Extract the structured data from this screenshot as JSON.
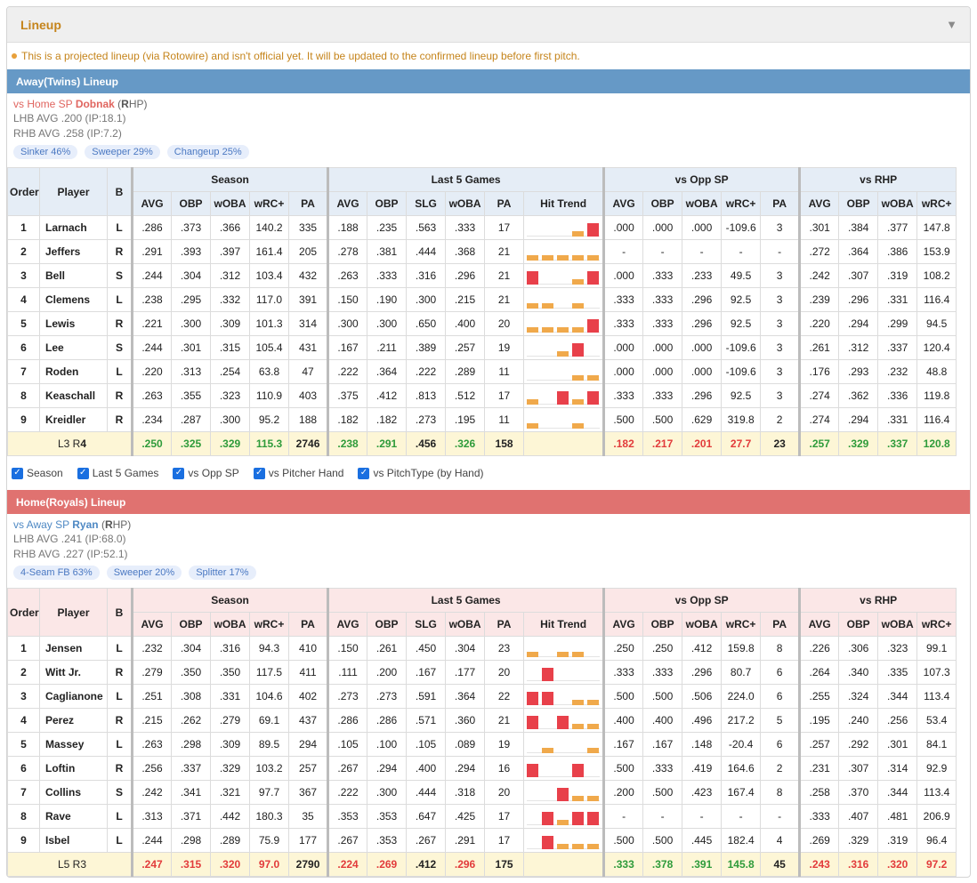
{
  "panel": {
    "title": "Lineup",
    "toggle_icon": "▼"
  },
  "notice": "This is a projected lineup (via Rotowire) and isn't official yet. It will be updated to the confirmed lineup before first pitch.",
  "colors": {
    "good": "#2e9b3a",
    "bad": "#e23b3b",
    "trend_high": "#e8404a",
    "trend_low": "#f0a94b"
  },
  "columns": {
    "groups": [
      "Season",
      "Last 5 Games",
      "vs Opp SP",
      "vs RHP"
    ],
    "order": "Order",
    "player": "Player",
    "bat": "B",
    "season": [
      "AVG",
      "OBP",
      "wOBA",
      "wRC+",
      "PA"
    ],
    "last5": [
      "AVG",
      "OBP",
      "SLG",
      "wOBA",
      "PA",
      "Hit Trend"
    ],
    "vsopp": [
      "AVG",
      "OBP",
      "wOBA",
      "wRC+",
      "PA"
    ],
    "vshand": [
      "AVG",
      "OBP",
      "wOBA",
      "wRC+"
    ]
  },
  "away": {
    "title": "Away(Twins) Lineup",
    "vs_prefix": "vs Home SP ",
    "sp_name": "Dobnak",
    "hand_open": " (",
    "hand_letter": "R",
    "hand_rest": "HP)",
    "lhb": "LHB AVG .200 (IP:18.1)",
    "rhb": "RHB AVG .258 (IP:7.2)",
    "pitches": [
      "Sinker 46%",
      "Sweeper 29%",
      "Changeup 25%"
    ],
    "rows": [
      {
        "o": "1",
        "n": "Larnach",
        "b": "L",
        "s": [
          ".286",
          ".373",
          ".366",
          "140.2",
          "335"
        ],
        "l": [
          ".188",
          ".235",
          ".563",
          ".333",
          "17"
        ],
        "t": [
          0,
          0,
          0,
          1,
          3
        ],
        "v": [
          ".000",
          ".000",
          ".000",
          "-109.6",
          "3"
        ],
        "h": [
          ".301",
          ".384",
          ".377",
          "147.8"
        ]
      },
      {
        "o": "2",
        "n": "Jeffers",
        "b": "R",
        "s": [
          ".291",
          ".393",
          ".397",
          "161.4",
          "205"
        ],
        "l": [
          ".278",
          ".381",
          ".444",
          ".368",
          "21"
        ],
        "t": [
          1,
          1,
          1,
          1,
          1
        ],
        "v": [
          "-",
          "-",
          "-",
          "-",
          "-"
        ],
        "h": [
          ".272",
          ".364",
          ".386",
          "153.9"
        ]
      },
      {
        "o": "3",
        "n": "Bell",
        "b": "S",
        "s": [
          ".244",
          ".304",
          ".312",
          "103.4",
          "432"
        ],
        "l": [
          ".263",
          ".333",
          ".316",
          ".296",
          "21"
        ],
        "t": [
          3,
          0,
          0,
          1,
          3
        ],
        "v": [
          ".000",
          ".333",
          ".233",
          "49.5",
          "3"
        ],
        "h": [
          ".242",
          ".307",
          ".319",
          "108.2"
        ]
      },
      {
        "o": "4",
        "n": "Clemens",
        "b": "L",
        "s": [
          ".238",
          ".295",
          ".332",
          "117.0",
          "391"
        ],
        "l": [
          ".150",
          ".190",
          ".300",
          ".215",
          "21"
        ],
        "t": [
          1,
          1,
          0,
          1,
          0
        ],
        "v": [
          ".333",
          ".333",
          ".296",
          "92.5",
          "3"
        ],
        "h": [
          ".239",
          ".296",
          ".331",
          "116.4"
        ]
      },
      {
        "o": "5",
        "n": "Lewis",
        "b": "R",
        "s": [
          ".221",
          ".300",
          ".309",
          "101.3",
          "314"
        ],
        "l": [
          ".300",
          ".300",
          ".650",
          ".400",
          "20"
        ],
        "t": [
          1,
          1,
          1,
          1,
          3
        ],
        "v": [
          ".333",
          ".333",
          ".296",
          "92.5",
          "3"
        ],
        "h": [
          ".220",
          ".294",
          ".299",
          "94.5"
        ]
      },
      {
        "o": "6",
        "n": "Lee",
        "b": "S",
        "s": [
          ".244",
          ".301",
          ".315",
          "105.4",
          "431"
        ],
        "l": [
          ".167",
          ".211",
          ".389",
          ".257",
          "19"
        ],
        "t": [
          0,
          0,
          1,
          3,
          0
        ],
        "v": [
          ".000",
          ".000",
          ".000",
          "-109.6",
          "3"
        ],
        "h": [
          ".261",
          ".312",
          ".337",
          "120.4"
        ]
      },
      {
        "o": "7",
        "n": "Roden",
        "b": "L",
        "s": [
          ".220",
          ".313",
          ".254",
          "63.8",
          "47"
        ],
        "l": [
          ".222",
          ".364",
          ".222",
          ".289",
          "11"
        ],
        "t": [
          0,
          0,
          0,
          1,
          1
        ],
        "v": [
          ".000",
          ".000",
          ".000",
          "-109.6",
          "3"
        ],
        "h": [
          ".176",
          ".293",
          ".232",
          "48.8"
        ]
      },
      {
        "o": "8",
        "n": "Keaschall",
        "b": "R",
        "s": [
          ".263",
          ".355",
          ".323",
          "110.9",
          "403"
        ],
        "l": [
          ".375",
          ".412",
          ".813",
          ".512",
          "17"
        ],
        "t": [
          1,
          0,
          3,
          1,
          3
        ],
        "v": [
          ".333",
          ".333",
          ".296",
          "92.5",
          "3"
        ],
        "h": [
          ".274",
          ".362",
          ".336",
          "119.8"
        ]
      },
      {
        "o": "9",
        "n": "Kreidler",
        "b": "R",
        "s": [
          ".234",
          ".287",
          ".300",
          "95.2",
          "188"
        ],
        "l": [
          ".182",
          ".182",
          ".273",
          ".195",
          "11"
        ],
        "t": [
          1,
          0,
          0,
          1,
          0
        ],
        "v": [
          ".500",
          ".500",
          ".629",
          "319.8",
          "2"
        ],
        "h": [
          ".274",
          ".294",
          ".331",
          "116.4"
        ]
      }
    ],
    "total": {
      "label_a": "L3 R",
      "label_b": "4",
      "s": [
        ".250",
        ".325",
        ".329",
        "115.3",
        "2746"
      ],
      "sc": [
        "g",
        "g",
        "g",
        "g",
        "k"
      ],
      "l": [
        ".238",
        ".291",
        ".456",
        ".326",
        "158"
      ],
      "lc": [
        "g",
        "g",
        "k",
        "g",
        "k"
      ],
      "v": [
        ".182",
        ".217",
        ".201",
        "27.7",
        "23"
      ],
      "vc": [
        "r",
        "r",
        "r",
        "r",
        "k"
      ],
      "h": [
        ".257",
        ".329",
        ".337",
        "120.8"
      ],
      "hc": [
        "g",
        "g",
        "g",
        "g"
      ]
    }
  },
  "filters": [
    "Season",
    "Last 5 Games",
    "vs Opp SP",
    "vs Pitcher Hand",
    "vs PitchType (by Hand)"
  ],
  "home": {
    "title": "Home(Royals) Lineup",
    "vs_prefix": "vs Away SP ",
    "sp_name": "Ryan",
    "hand_open": " (",
    "hand_letter": "R",
    "hand_rest": "HP)",
    "lhb": "LHB AVG .241 (IP:68.0)",
    "rhb": "RHB AVG .227 (IP:52.1)",
    "pitches": [
      "4-Seam FB 63%",
      "Sweeper 20%",
      "Splitter 17%"
    ],
    "rows": [
      {
        "o": "1",
        "n": "Jensen",
        "b": "L",
        "s": [
          ".232",
          ".304",
          ".316",
          "94.3",
          "410"
        ],
        "l": [
          ".150",
          ".261",
          ".450",
          ".304",
          "23"
        ],
        "t": [
          1,
          0,
          1,
          1,
          0
        ],
        "v": [
          ".250",
          ".250",
          ".412",
          "159.8",
          "8"
        ],
        "h": [
          ".226",
          ".306",
          ".323",
          "99.1"
        ]
      },
      {
        "o": "2",
        "n": "Witt Jr.",
        "b": "R",
        "s": [
          ".279",
          ".350",
          ".350",
          "117.5",
          "411"
        ],
        "l": [
          ".111",
          ".200",
          ".167",
          ".177",
          "20"
        ],
        "t": [
          0,
          3,
          0,
          0,
          0
        ],
        "v": [
          ".333",
          ".333",
          ".296",
          "80.7",
          "6"
        ],
        "h": [
          ".264",
          ".340",
          ".335",
          "107.3"
        ]
      },
      {
        "o": "3",
        "n": "Caglianone",
        "b": "L",
        "s": [
          ".251",
          ".308",
          ".331",
          "104.6",
          "402"
        ],
        "l": [
          ".273",
          ".273",
          ".591",
          ".364",
          "22"
        ],
        "t": [
          3,
          3,
          0,
          1,
          1
        ],
        "v": [
          ".500",
          ".500",
          ".506",
          "224.0",
          "6"
        ],
        "h": [
          ".255",
          ".324",
          ".344",
          "113.4"
        ]
      },
      {
        "o": "4",
        "n": "Perez",
        "b": "R",
        "s": [
          ".215",
          ".262",
          ".279",
          "69.1",
          "437"
        ],
        "l": [
          ".286",
          ".286",
          ".571",
          ".360",
          "21"
        ],
        "t": [
          3,
          0,
          3,
          1,
          1
        ],
        "v": [
          ".400",
          ".400",
          ".496",
          "217.2",
          "5"
        ],
        "h": [
          ".195",
          ".240",
          ".256",
          "53.4"
        ]
      },
      {
        "o": "5",
        "n": "Massey",
        "b": "L",
        "s": [
          ".263",
          ".298",
          ".309",
          "89.5",
          "294"
        ],
        "l": [
          ".105",
          ".100",
          ".105",
          ".089",
          "19"
        ],
        "t": [
          0,
          1,
          0,
          0,
          1
        ],
        "v": [
          ".167",
          ".167",
          ".148",
          "-20.4",
          "6"
        ],
        "h": [
          ".257",
          ".292",
          ".301",
          "84.1"
        ]
      },
      {
        "o": "6",
        "n": "Loftin",
        "b": "R",
        "s": [
          ".256",
          ".337",
          ".329",
          "103.2",
          "257"
        ],
        "l": [
          ".267",
          ".294",
          ".400",
          ".294",
          "16"
        ],
        "t": [
          3,
          0,
          0,
          3,
          0
        ],
        "v": [
          ".500",
          ".333",
          ".419",
          "164.6",
          "2"
        ],
        "h": [
          ".231",
          ".307",
          ".314",
          "92.9"
        ]
      },
      {
        "o": "7",
        "n": "Collins",
        "b": "S",
        "s": [
          ".242",
          ".341",
          ".321",
          "97.7",
          "367"
        ],
        "l": [
          ".222",
          ".300",
          ".444",
          ".318",
          "20"
        ],
        "t": [
          0,
          0,
          3,
          1,
          1
        ],
        "v": [
          ".200",
          ".500",
          ".423",
          "167.4",
          "8"
        ],
        "h": [
          ".258",
          ".370",
          ".344",
          "113.4"
        ]
      },
      {
        "o": "8",
        "n": "Rave",
        "b": "L",
        "s": [
          ".313",
          ".371",
          ".442",
          "180.3",
          "35"
        ],
        "l": [
          ".353",
          ".353",
          ".647",
          ".425",
          "17"
        ],
        "t": [
          0,
          3,
          1,
          3,
          3
        ],
        "v": [
          "-",
          "-",
          "-",
          "-",
          "-"
        ],
        "h": [
          ".333",
          ".407",
          ".481",
          "206.9"
        ]
      },
      {
        "o": "9",
        "n": "Isbel",
        "b": "L",
        "s": [
          ".244",
          ".298",
          ".289",
          "75.9",
          "177"
        ],
        "l": [
          ".267",
          ".353",
          ".267",
          ".291",
          "17"
        ],
        "t": [
          0,
          3,
          1,
          1,
          1
        ],
        "v": [
          ".500",
          ".500",
          ".445",
          "182.4",
          "4"
        ],
        "h": [
          ".269",
          ".329",
          ".319",
          "96.4"
        ]
      }
    ],
    "total": {
      "label_a": "L5 R3",
      "label_b": "",
      "s": [
        ".247",
        ".315",
        ".320",
        "97.0",
        "2790"
      ],
      "sc": [
        "r",
        "r",
        "r",
        "r",
        "k"
      ],
      "l": [
        ".224",
        ".269",
        ".412",
        ".296",
        "175"
      ],
      "lc": [
        "r",
        "r",
        "k",
        "r",
        "k"
      ],
      "v": [
        ".333",
        ".378",
        ".391",
        "145.8",
        "45"
      ],
      "vc": [
        "g",
        "g",
        "g",
        "g",
        "k"
      ],
      "h": [
        ".243",
        ".316",
        ".320",
        "97.2"
      ],
      "hc": [
        "r",
        "r",
        "r",
        "r"
      ]
    }
  }
}
